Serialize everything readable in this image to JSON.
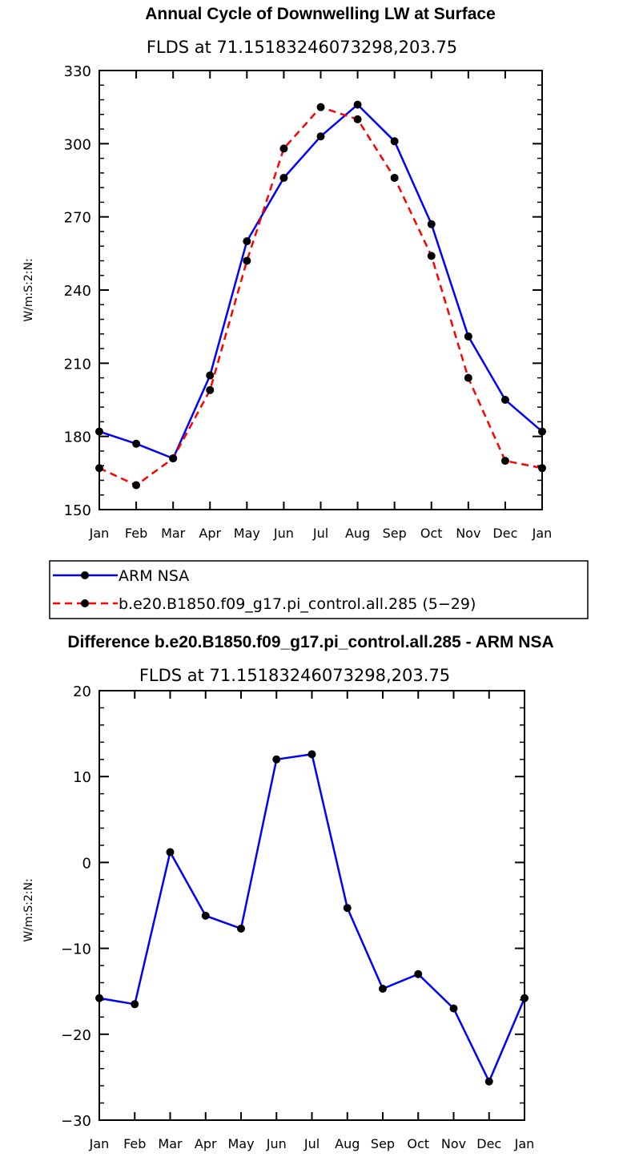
{
  "chart_data": [
    {
      "type": "line",
      "title": "Annual Cycle of Downwelling LW at Surface",
      "subtitle": "FLDS at 71.15183246073298,203.75",
      "ylabel": "W/m:S:2:N:",
      "xlabel": "",
      "categories": [
        "Jan",
        "Feb",
        "Mar",
        "Apr",
        "May",
        "Jun",
        "Jul",
        "Aug",
        "Sep",
        "Oct",
        "Nov",
        "Dec",
        "Jan"
      ],
      "ylim": [
        150,
        330
      ],
      "yticks": [
        150,
        180,
        210,
        240,
        270,
        300,
        330
      ],
      "yticks_text": [
        "150",
        "180",
        "210",
        "240",
        "270",
        "300",
        "330"
      ],
      "series": [
        {
          "name": "ARM NSA",
          "color": "#0000ff",
          "dash": "solid",
          "values": [
            182,
            177,
            171,
            205,
            260,
            286,
            303,
            316,
            301,
            267,
            221,
            195,
            182
          ]
        },
        {
          "name": "b.e20.B1850.f09_g17.pi_control.all.285 (5−29)",
          "color": "#ff0000",
          "dash": "dashed",
          "values": [
            167,
            160,
            171,
            199,
            252,
            298,
            315,
            310,
            286,
            254,
            204,
            170,
            167
          ]
        }
      ],
      "legend": "bottom-left, boxed"
    },
    {
      "type": "line",
      "title": "Difference b.e20.B1850.f09_g17.pi_control.all.285 - ARM NSA",
      "subtitle": "FLDS at 71.15183246073298,203.75",
      "ylabel": "W/m:S:2:N:",
      "xlabel": "",
      "categories": [
        "Jan",
        "Feb",
        "Mar",
        "Apr",
        "May",
        "Jun",
        "Jul",
        "Aug",
        "Sep",
        "Oct",
        "Nov",
        "Dec",
        "Jan"
      ],
      "ylim": [
        -30,
        20
      ],
      "yticks": [
        -30,
        -20,
        -10,
        0,
        10,
        20
      ],
      "yticks_text": [
        "−30",
        "−20",
        "−10",
        "0",
        "10",
        "20"
      ],
      "series": [
        {
          "name": "Difference",
          "color": "#0000ff",
          "dash": "solid",
          "values": [
            -15.8,
            -16.5,
            1.2,
            -6.2,
            -7.7,
            12.0,
            12.6,
            -5.3,
            -14.7,
            -13.0,
            -17.0,
            -25.5,
            -15.8
          ]
        }
      ]
    }
  ]
}
